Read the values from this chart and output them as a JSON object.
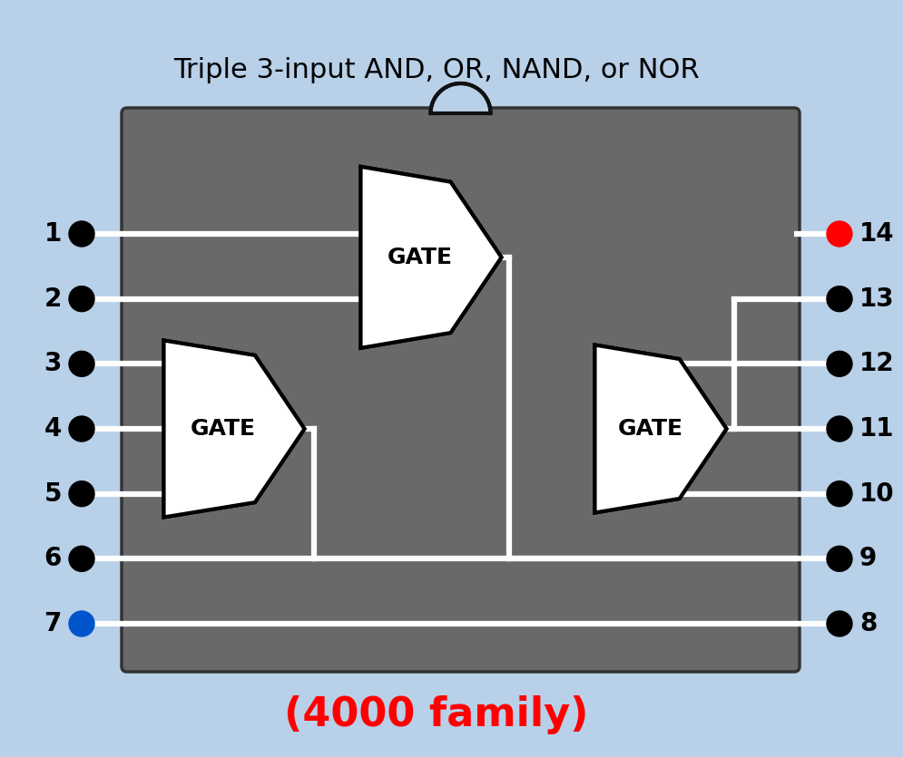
{
  "title": "Triple 3-input AND, OR, NAND, or NOR",
  "subtitle": "(4000 family)",
  "subtitle_color": "#ff0000",
  "bg_color": "#b8d0e8",
  "chip_color": "#696969",
  "wire_color": "#ffffff",
  "gate_fill": "#ffffff",
  "gate_edge": "#000000",
  "pin_dot_color": "#000000",
  "pin14_color": "#ff0000",
  "pin7_color": "#0055cc",
  "title_fontsize": 22,
  "subtitle_fontsize": 32,
  "pin_label_fontsize": 20,
  "gate_label_fontsize": 18,
  "left_pins": [
    1,
    2,
    3,
    4,
    5,
    6,
    7
  ],
  "right_pins": [
    14,
    13,
    12,
    11,
    10,
    9,
    8
  ]
}
